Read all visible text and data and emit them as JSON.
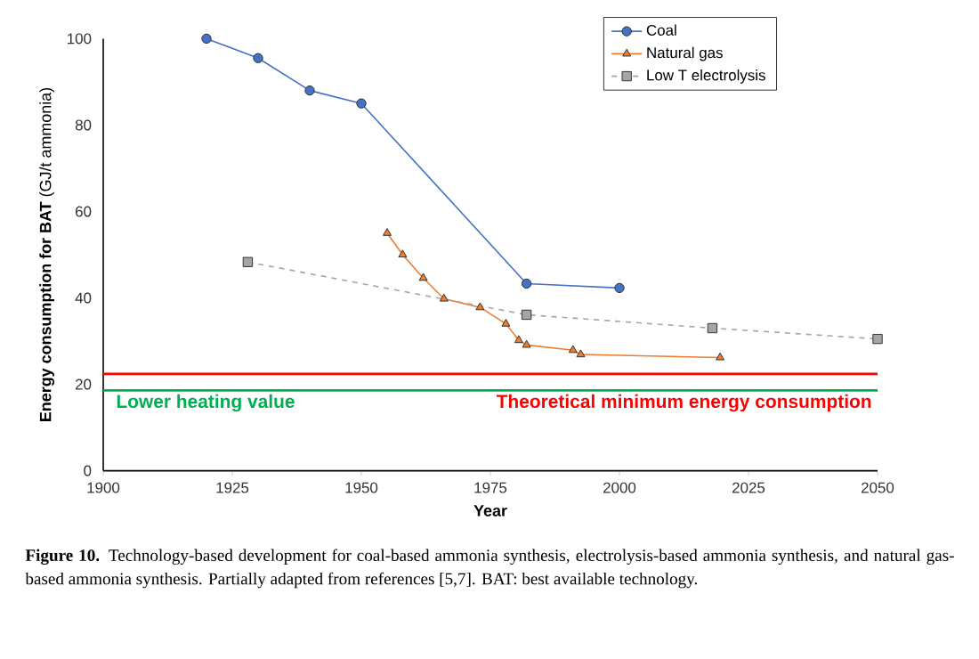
{
  "chart_data": {
    "type": "line",
    "xlabel": "Year",
    "ylabel": "**Energy consumption for BAT** (GJ/t ammonia)",
    "xlim": [
      1900,
      2050
    ],
    "xticks": [
      1900,
      1925,
      1950,
      1975,
      2000,
      2025,
      2050
    ],
    "ylim": [
      0,
      100
    ],
    "yticks": [
      0,
      20,
      40,
      60,
      80,
      100
    ],
    "legend": "top right",
    "series": [
      {
        "name": "Coal",
        "color": "#4472c4",
        "marker": "circle",
        "line_style": "solid",
        "x": [
          1920,
          1930,
          1940,
          1950,
          1982,
          2000
        ],
        "values": [
          100,
          95.5,
          88,
          85,
          43.3,
          42.3
        ]
      },
      {
        "name": "Natural gas",
        "color": "#ed7d31",
        "marker": "triangle",
        "line_style": "solid",
        "x": [
          1955,
          1958,
          1962,
          1966,
          1973,
          1978,
          1980.5,
          1982,
          1991,
          1992.5,
          2019.5
        ],
        "values": [
          55,
          50,
          44.6,
          39.8,
          37.8,
          34,
          30.2,
          29.1,
          27.9,
          26.9,
          26.2
        ]
      },
      {
        "name": "Low T electrolysis",
        "color": "#a5a5a5",
        "marker": "square",
        "line_style": "dashed",
        "x": [
          1928,
          1982,
          2018,
          2050
        ],
        "values": [
          48.3,
          36.1,
          33,
          30.5
        ]
      }
    ],
    "ref_lines": [
      {
        "axis": "y",
        "value": 22.4,
        "label": "Theoretical minimum energy consumption",
        "color": "#ff0000"
      },
      {
        "axis": "y",
        "value": 18.6,
        "label": "Lower heating value",
        "color": "#00b050"
      }
    ],
    "annotations": [
      "**Figure 10.** Technology-based development for coal-based ammonia synthesis, electrolysis-based ammonia synthesis, and natural gas-based ammonia synthesis. Partially adapted from references [5,7]. BAT: best available technology."
    ]
  }
}
